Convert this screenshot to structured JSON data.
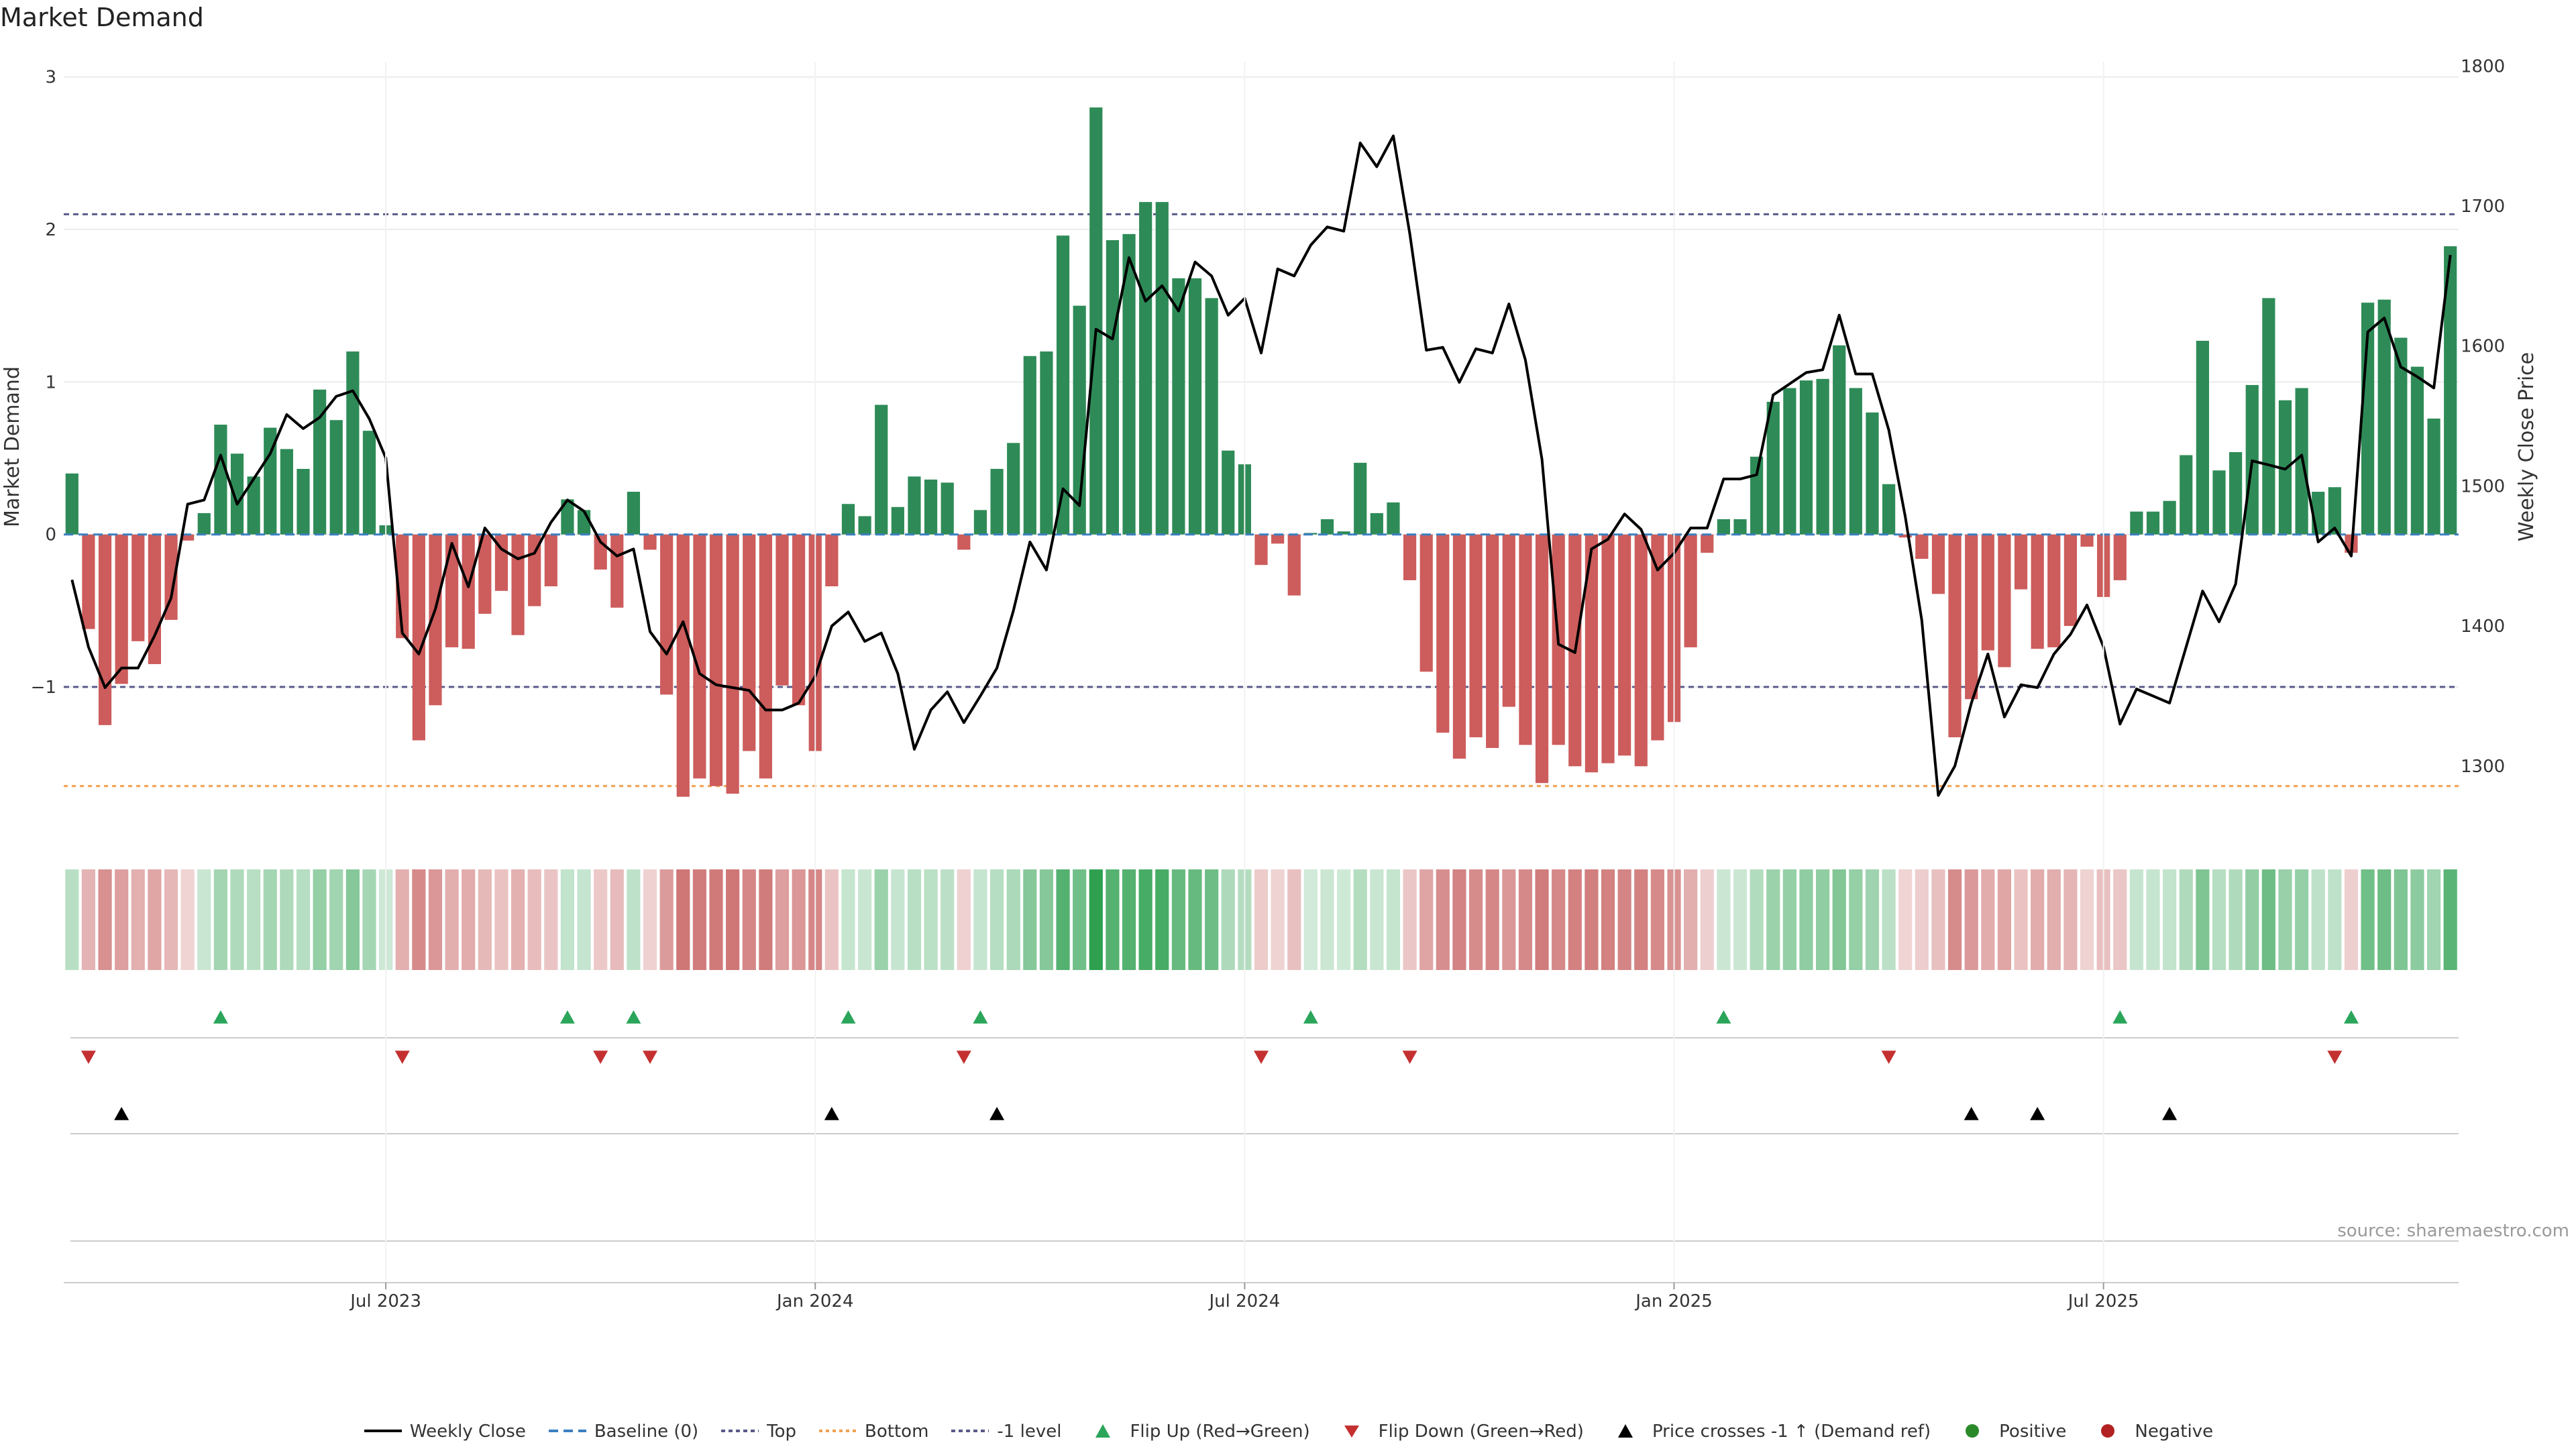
{
  "chart_data": {
    "type": "bar+line",
    "title": "Market Demand",
    "ylabel_left": "Market Demand",
    "ylabel_right": "Weekly Close Price",
    "left_ticks": [
      -1,
      0,
      1,
      2,
      3
    ],
    "left_range": [
      -1.95,
      3.1
    ],
    "right_ticks": [
      1300,
      1400,
      1500,
      1600,
      1700,
      1800
    ],
    "right_range": [
      1253,
      1803
    ],
    "date_ticks": [
      "Jul 2023",
      "Jan 2024",
      "Jul 2024",
      "Jan 2025",
      "Jul 2025"
    ],
    "reference_lines": {
      "top": 2.1,
      "minus_one": -1.0,
      "bottom": -1.65
    },
    "demand": [
      0.4,
      -0.62,
      -1.25,
      -0.98,
      -0.7,
      -0.85,
      -0.56,
      -0.04,
      0.14,
      0.72,
      0.53,
      0.38,
      0.7,
      0.56,
      0.43,
      0.95,
      0.75,
      1.2,
      0.68,
      0.06,
      -0.68,
      -1.35,
      -1.12,
      -0.74,
      -0.75,
      -0.52,
      -0.37,
      -0.66,
      -0.47,
      -0.34,
      0.23,
      0.16,
      -0.23,
      -0.48,
      0.28,
      -0.1,
      -1.05,
      -1.72,
      -1.6,
      -1.65,
      -1.7,
      -1.42,
      -1.6,
      -0.99,
      -1.12,
      -1.42,
      -0.34,
      0.2,
      0.12,
      0.85,
      0.18,
      0.38,
      0.36,
      0.34,
      -0.1,
      0.16,
      0.43,
      0.6,
      1.17,
      1.2,
      1.96,
      1.5,
      2.8,
      1.93,
      1.97,
      2.18,
      2.18,
      1.68,
      1.68,
      1.55,
      0.55,
      0.46,
      -0.2,
      -0.06,
      -0.4,
      0.01,
      0.1,
      0.02,
      0.47,
      0.14,
      0.21,
      -0.3,
      -0.9,
      -1.3,
      -1.47,
      -1.33,
      -1.4,
      -1.13,
      -1.38,
      -1.63,
      -1.38,
      -1.52,
      -1.56,
      -1.5,
      -1.45,
      -1.52,
      -1.35,
      -1.23,
      -0.74,
      -0.12,
      0.1,
      0.1,
      0.51,
      0.87,
      0.96,
      1.01,
      1.02,
      1.24,
      0.96,
      0.8,
      0.33,
      -0.02,
      -0.16,
      -0.39,
      -1.33,
      -1.08,
      -0.76,
      -0.87,
      -0.36,
      -0.75,
      -0.74,
      -0.6,
      -0.08,
      -0.41,
      -0.3,
      0.15,
      0.15,
      0.22,
      0.52,
      1.27,
      0.42,
      0.54,
      0.98,
      1.55,
      0.88,
      0.96,
      0.28,
      0.31,
      -0.12,
      1.52,
      1.54,
      1.29,
      1.1,
      0.76,
      1.89
    ],
    "weekly_close": [
      1433,
      1385,
      1356,
      1370,
      1370,
      1393,
      1420,
      1487,
      1490,
      1522,
      1487,
      1505,
      1523,
      1551,
      1541,
      1549,
      1564,
      1568,
      1548,
      1520,
      1395,
      1380,
      1412,
      1459,
      1428,
      1470,
      1455,
      1448,
      1452,
      1474,
      1490,
      1482,
      1460,
      1450,
      1455,
      1396,
      1380,
      1403,
      1366,
      1358,
      1356,
      1354,
      1340,
      1340,
      1345,
      1364,
      1400,
      1410,
      1389,
      1395,
      1366,
      1312,
      1340,
      1353,
      1331,
      1350,
      1370,
      1411,
      1460,
      1440,
      1498,
      1486,
      1612,
      1605,
      1663,
      1632,
      1643,
      1625,
      1660,
      1650,
      1622,
      1634,
      1595,
      1655,
      1650,
      1672,
      1685,
      1682,
      1745,
      1728,
      1750,
      1680,
      1597,
      1599,
      1574,
      1598,
      1595,
      1630,
      1590,
      1519,
      1387,
      1381,
      1455,
      1462,
      1480,
      1469,
      1440,
      1452,
      1470,
      1470,
      1505,
      1505,
      1508,
      1565,
      1573,
      1581,
      1583,
      1622,
      1580,
      1580,
      1540,
      1478,
      1404,
      1279,
      1300,
      1345,
      1380,
      1335,
      1358,
      1356,
      1380,
      1394,
      1415,
      1385,
      1330,
      1355,
      1350,
      1345,
      1385,
      1425,
      1403,
      1430,
      1518,
      1515,
      1512,
      1522,
      1460,
      1470,
      1450,
      1610,
      1620,
      1585,
      1578,
      1570,
      1665
    ],
    "heat_strip": "demand-tinted cells, green positive / red negative",
    "flip_up": [
      9,
      30,
      34,
      47,
      55,
      75,
      100,
      124,
      138
    ],
    "flip_down": [
      1,
      20,
      32,
      35,
      54,
      72,
      81,
      110,
      137
    ],
    "price_crosses_minus1": [
      3,
      46,
      56,
      115,
      119,
      127
    ]
  },
  "legend": [
    {
      "label": "Weekly Close",
      "color": "#000000"
    },
    {
      "label": "Baseline (0)",
      "color": "#3a7fc1"
    },
    {
      "label": "Top",
      "color": "#5a5a8a"
    },
    {
      "label": "Bottom",
      "color": "#f0a050"
    },
    {
      "label": "-1 level",
      "color": "#5a5a8a"
    },
    {
      "label": "Flip Up (Red→Green)",
      "color": "#2aa55a"
    },
    {
      "label": "Flip Down (Green→Red)",
      "color": "#c43030"
    },
    {
      "label": "Price crosses -1 ↑ (Demand ref)",
      "color": "#000000"
    },
    {
      "label": "Positive",
      "color": "#2a8a2a"
    },
    {
      "label": "Negative",
      "color": "#b22222"
    }
  ],
  "source": "source: sharemaestro.com",
  "colors": {
    "pos_bar": "#2e8b57",
    "neg_bar": "#cd5c5c",
    "price": "#000000"
  }
}
